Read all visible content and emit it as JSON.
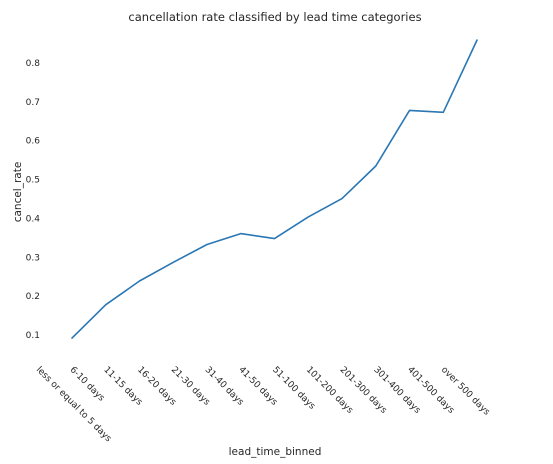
{
  "chart_data": {
    "type": "line",
    "title": "cancellation rate classified by lead time categories",
    "xlabel": "lead_time_binned",
    "ylabel": "cancel_rate",
    "categories": [
      "less or equal to 5 days",
      "6-10 days",
      "11-15 days",
      "16-20 days",
      "21-30 days",
      "31-40 days",
      "41-50 days",
      "51-100 days",
      "101-200 days",
      "201-300 days",
      "301-400 days",
      "401-500 days",
      "over 500 days"
    ],
    "series": [
      {
        "values": [
          0.092,
          0.178,
          0.239,
          0.287,
          0.333,
          0.361,
          0.348,
          0.404,
          0.451,
          0.535,
          0.678,
          0.673,
          0.859
        ]
      }
    ],
    "yticks": [
      "0.1",
      "0.2",
      "0.3",
      "0.4",
      "0.5",
      "0.6",
      "0.7",
      "0.8"
    ],
    "ylim": [
      0.05,
      0.9
    ],
    "grid": false,
    "colors": {
      "line": "#2a77b4"
    }
  }
}
